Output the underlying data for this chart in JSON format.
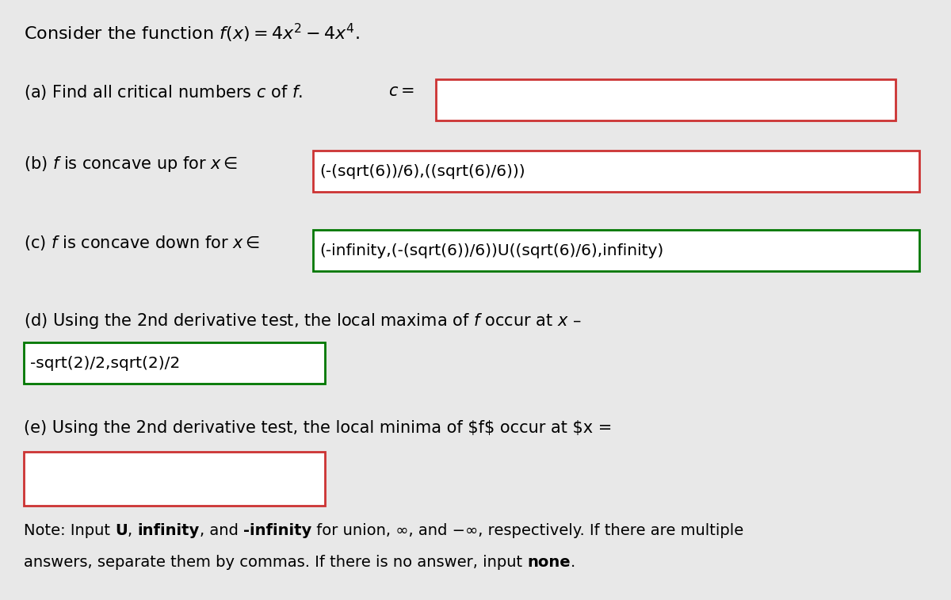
{
  "background_color": "#e8e8e8",
  "font_size_title": 16,
  "font_size_body": 15,
  "font_size_note": 14,
  "title": "Consider the function $f(x) = 4x^2 - 4x^4$.",
  "part_a_text": "(a) Find all critical numbers $c$ of $f$.",
  "part_a_eq": "$c =$",
  "part_a_box": "",
  "part_a_border": "#cc3333",
  "part_b_text": "(b) $f$ is concave up for $x \\in$",
  "part_b_box": "(-(sqrt(6))/6),((sqrt(6)/6)))",
  "part_b_border": "#cc3333",
  "part_c_text": "(c) $f$ is concave down for $x \\in$",
  "part_c_box": "(-infinity,(-(sqrt(6))/6))U((sqrt(6)/6),infinity)",
  "part_c_border": "#007700",
  "part_d_text": "(d) Using the 2nd derivative test, the local maxima of $f$ occur at $x$ –",
  "part_d_box": "-sqrt(2)/2,sqrt(2)/2",
  "part_d_border": "#007700",
  "part_e_text": "(e) Using the 2nd derivative test, the local minima of $f$ occur at $x =",
  "part_e_box": "",
  "part_e_border": "#cc3333",
  "note_pre": "Note: Input ",
  "note_U": "U",
  "note_m1": ", ",
  "note_inf": "infinity",
  "note_m2": ", and ",
  "note_ninf": "-infinity",
  "note_end1": " for union, ∞, and −∞, respectively. If there are multiple",
  "note_line2a": "answers, separate them by commas. If there is no answer, input ",
  "note_none": "none",
  "note_line2b": "."
}
